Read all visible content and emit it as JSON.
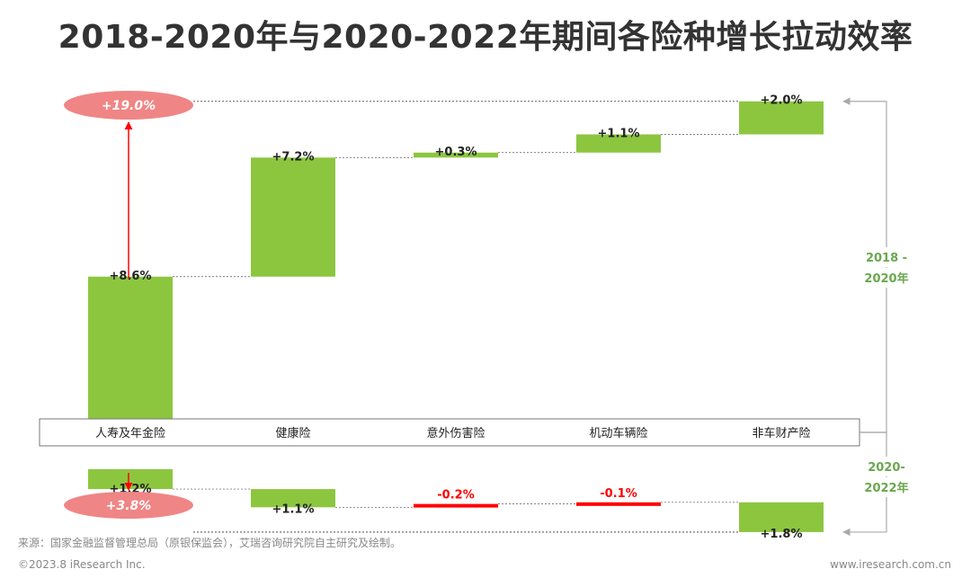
{
  "title": "2018-2020年与2020-2022年期间各险种增长拉动效率",
  "source": "来源：国家金融监督管理总局（原银保监会），艾瑞咨询研究院自主研究及绘制。",
  "copyright": "©2023.8 iResearch Inc.",
  "website": "www.iresearch.com.cn",
  "colors": {
    "positive": "#8cc63f",
    "negative": "#ff0000",
    "total": "#f08585",
    "period_label": "#6aa84f",
    "arrow": "#ff0000",
    "bracket": "#aaaaaa"
  },
  "chart_data": {
    "type": "waterfall",
    "categories": [
      "人寿及年金险",
      "健康险",
      "意外伤害险",
      "机动车辆险",
      "非车财产险"
    ],
    "series": [
      {
        "name": "2018 - 2020年",
        "values": [
          8.6,
          7.2,
          0.3,
          1.1,
          2.0
        ],
        "labels": [
          "+8.6%",
          "+7.2%",
          "+0.3%",
          "+1.1%",
          "+2.0%"
        ],
        "total": 19.0,
        "total_label": "+19.0%"
      },
      {
        "name": "2020-2022年",
        "values": [
          1.2,
          1.1,
          -0.2,
          -0.1,
          1.8
        ],
        "labels": [
          "+1.2%",
          "+1.1%",
          "-0.2%",
          "-0.1%",
          "+1.8%"
        ],
        "total": 3.8,
        "total_label": "+3.8%"
      }
    ],
    "period_labels": [
      "2018 -",
      "2020年",
      "2020-",
      "2022年"
    ]
  }
}
